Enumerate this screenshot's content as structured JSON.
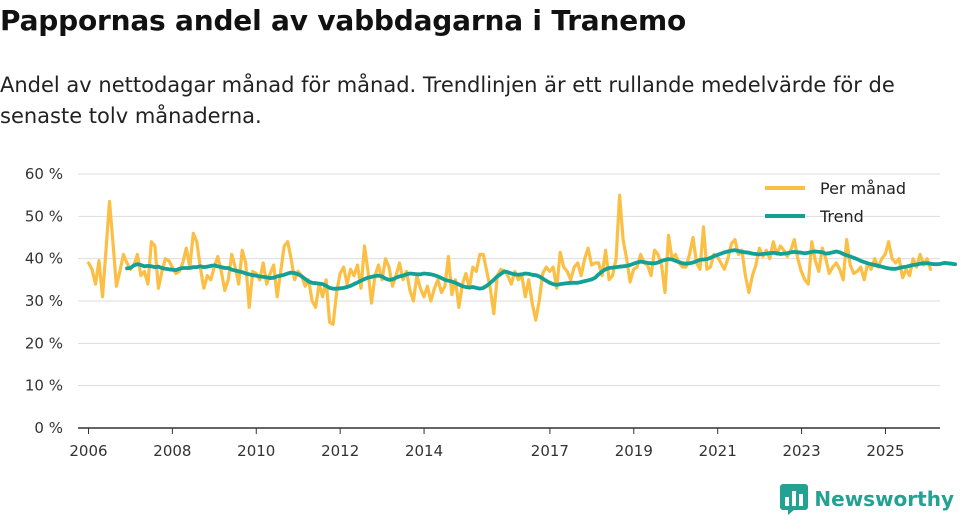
{
  "title": "Pappornas andel av vabbdagarna i Tranemo",
  "subtitle": "Andel av nettodagar månad för månad. Trendlinjen är ett rullande medelvärde för de senaste tolv månaderna.",
  "brand": {
    "name": "Newsworthy",
    "icon": "bar-chart-logo-icon"
  },
  "colors": {
    "monthly": "#fbbf45",
    "trend": "#13a195",
    "grid": "#dddddd",
    "axis": "#333333",
    "brand": "#23a294"
  },
  "chart_data": {
    "type": "line",
    "xlabel": "",
    "ylabel": "",
    "y_unit": " %",
    "ylim": [
      0,
      60
    ],
    "y_ticks": [
      0,
      10,
      20,
      30,
      40,
      50,
      60
    ],
    "y_tick_labels": [
      "0 %",
      "10 %",
      "20 %",
      "30 %",
      "40 %",
      "50 %",
      "60 %"
    ],
    "x_ticks": [
      2006,
      2008,
      2010,
      2012,
      2014,
      2017,
      2019,
      2021,
      2023,
      2025
    ],
    "x_tick_labels": [
      "2006",
      "2008",
      "2010",
      "2012",
      "2014",
      "2017",
      "2019",
      "2021",
      "2023",
      "2025"
    ],
    "xlim": [
      2005.75,
      2026.3
    ],
    "legend": {
      "position": "top-right",
      "entries": [
        "Per månad",
        "Trend"
      ]
    },
    "series": [
      {
        "name": "Per månad",
        "start": 2006.0,
        "step": 0.0833,
        "values": [
          39,
          37.5,
          34,
          39.5,
          31,
          42,
          53.5,
          44,
          33.5,
          37,
          41,
          39,
          37.5,
          38.5,
          41,
          36,
          37,
          34,
          44,
          43,
          33,
          37,
          40,
          39.5,
          38,
          36.5,
          37,
          39,
          42.5,
          38,
          46,
          44,
          38,
          33,
          36,
          35,
          38,
          40.5,
          37,
          32.5,
          35,
          41,
          38,
          34,
          42,
          39,
          28.5,
          37,
          36.5,
          35,
          39,
          34,
          36.5,
          38.5,
          31,
          37,
          43,
          44,
          40,
          35,
          37,
          36,
          33.5,
          35,
          30,
          28.5,
          34,
          31,
          35,
          25,
          24.5,
          32,
          36.5,
          38,
          34,
          37.5,
          36,
          38.5,
          33,
          43,
          37,
          29.5,
          36,
          38.5,
          35,
          40,
          38,
          33.5,
          36,
          39,
          35,
          37,
          32.5,
          30,
          36,
          33,
          31,
          33.5,
          30,
          33,
          35,
          32,
          33.5,
          40.5,
          31.5,
          35,
          28.5,
          34,
          36.5,
          33,
          38,
          37,
          41,
          41,
          37,
          33,
          27,
          36,
          37.5,
          37,
          36,
          34,
          37,
          35,
          36,
          31,
          35,
          29.5,
          25.5,
          30,
          36.5,
          38,
          37,
          38,
          33,
          41.5,
          38,
          37,
          35,
          38,
          39,
          36,
          40,
          42.5,
          38.5,
          39,
          39,
          36,
          42,
          35,
          36,
          40,
          55,
          44.5,
          40,
          34.5,
          37.5,
          38,
          41,
          39,
          38.5,
          36,
          42,
          41,
          38.5,
          32,
          45.5,
          40,
          41,
          39,
          38,
          38,
          41,
          45,
          39,
          37.5,
          47.5,
          37.5,
          38,
          41,
          40.5,
          39,
          37.5,
          40,
          43.5,
          44.5,
          41,
          42,
          36,
          32,
          36,
          38.5,
          42.5,
          40.5,
          42,
          40,
          44,
          41,
          43,
          42,
          40.5,
          42,
          44.5,
          40,
          37,
          35,
          34,
          44,
          39.5,
          37,
          42.5,
          40,
          36.5,
          38,
          39,
          37.5,
          35,
          44.5,
          38.5,
          36.5,
          37,
          38,
          35,
          39,
          37.5,
          40,
          38,
          40,
          41,
          44,
          40,
          39,
          40,
          35.5,
          37.5,
          36,
          40,
          38,
          41,
          38.5,
          40,
          37.5
        ]
      },
      {
        "name": "Trend",
        "start": 2006.917,
        "step": 0.0833,
        "values": [
          37.7,
          37.8,
          38.4,
          38.7,
          38.5,
          38.2,
          38.3,
          38.2,
          38,
          38.1,
          37.8,
          37.6,
          37.5,
          37.4,
          37.3,
          37.6,
          37.8,
          37.8,
          37.8,
          38,
          38,
          38.2,
          38,
          38.1,
          38.3,
          38.4,
          38.2,
          38,
          37.8,
          37.8,
          37.4,
          37.2,
          37,
          36.8,
          36.5,
          36.3,
          36.1,
          36,
          35.8,
          35.7,
          35.6,
          35.4,
          35.5,
          35.8,
          36,
          36.2,
          36.5,
          36.7,
          36.6,
          36.3,
          35.8,
          35.2,
          34.6,
          34.3,
          34.2,
          34.1,
          34,
          33.6,
          33.1,
          32.9,
          32.9,
          33,
          33.1,
          33.3,
          33.6,
          34,
          34.4,
          34.8,
          35.2,
          35.5,
          35.7,
          35.9,
          36,
          35.8,
          35.3,
          35,
          35.1,
          35.5,
          35.8,
          36,
          36.3,
          36.5,
          36.4,
          36.3,
          36.3,
          36.5,
          36.4,
          36.3,
          36.1,
          35.8,
          35.4,
          35,
          34.8,
          34.6,
          34.3,
          33.9,
          33.5,
          33.3,
          33.2,
          33.3,
          33.1,
          32.9,
          33.1,
          33.6,
          34.3,
          35,
          35.8,
          36.4,
          37,
          36.8,
          36.5,
          36.3,
          36.2,
          36.3,
          36.5,
          36.4,
          36.2,
          36.1,
          35.8,
          35.3,
          34.8,
          34.3,
          34,
          33.8,
          34,
          34.1,
          34.2,
          34.3,
          34.3,
          34.3,
          34.5,
          34.7,
          34.9,
          35.1,
          35.5,
          36.3,
          37,
          37.5,
          37.8,
          37.9,
          38,
          38.1,
          38.2,
          38.3,
          38.5,
          38.8,
          39.1,
          39.3,
          39.2,
          39,
          38.9,
          38.9,
          39.1,
          39.5,
          39.7,
          39.9,
          39.8,
          39.5,
          39.2,
          38.9,
          38.8,
          38.9,
          39.1,
          39.4,
          39.7,
          39.8,
          39.9,
          40.2,
          40.6,
          40.9,
          41.2,
          41.5,
          41.7,
          41.9,
          42,
          41.8,
          41.6,
          41.5,
          41.4,
          41.2,
          41.1,
          41,
          41.1,
          41.2,
          41.3,
          41.4,
          41.3,
          41.1,
          41.2,
          41.3,
          41.5,
          41.6,
          41.5,
          41.4,
          41.3,
          41.4,
          41.6,
          41.7,
          41.6,
          41.5,
          41.2,
          41.3,
          41.5,
          41.7,
          41.5,
          41.1,
          40.8,
          40.5,
          40.2,
          39.9,
          39.5,
          39.2,
          38.9,
          38.7,
          38.5,
          38.3,
          38.1,
          37.9,
          37.7,
          37.6,
          37.6,
          37.8,
          38,
          38.1,
          38.3,
          38.5,
          38.6,
          38.8,
          38.9,
          38.9,
          38.8,
          38.7,
          38.7,
          38.8,
          39,
          38.9,
          38.8,
          38.7
        ]
      }
    ]
  }
}
